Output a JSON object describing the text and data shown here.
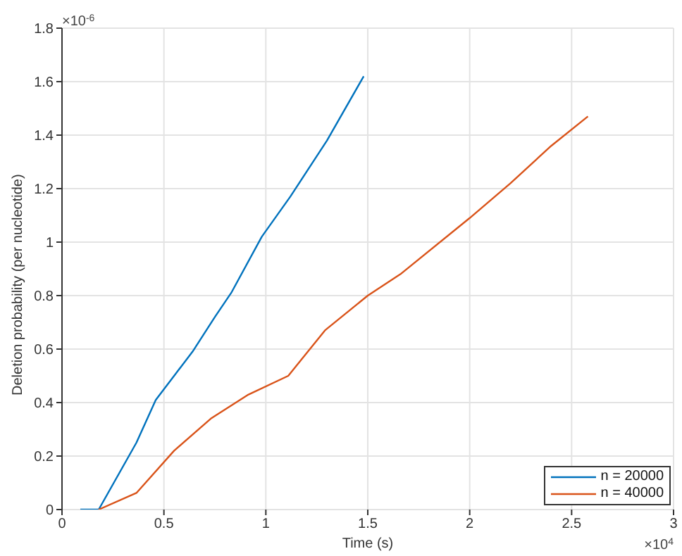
{
  "chart_data": {
    "type": "line",
    "xlabel": "Time (s)",
    "ylabel": "Deletion probability (per nucleotide)",
    "xlim": [
      0,
      3
    ],
    "xticks": [
      0,
      0.5,
      1,
      1.5,
      2,
      2.5,
      3
    ],
    "ylim": [
      0,
      1.8
    ],
    "yticks": [
      0,
      0.2,
      0.4,
      0.6,
      0.8,
      1,
      1.2,
      1.4,
      1.6,
      1.8
    ],
    "grid": true,
    "legend": "bottom right",
    "marker": "none",
    "line_style": "solid",
    "annotations": [
      "×10$^{-6}$",
      "×10$^{4}$"
    ],
    "series": [
      {
        "name": "n = 20000",
        "color": "#0072bd",
        "x": [
          0.09,
          0.18,
          0.365,
          0.46,
          0.55,
          0.64,
          0.75,
          0.83,
          0.98,
          1.12,
          1.3,
          1.48
        ],
        "values": [
          0,
          0,
          0.25,
          0.41,
          0.5,
          0.59,
          0.72,
          0.81,
          1.02,
          1.17,
          1.38,
          1.62
        ]
      },
      {
        "name": "n = 40000",
        "color": "#d95319",
        "x": [
          0.18,
          0.365,
          0.55,
          0.73,
          0.915,
          1.11,
          1.29,
          1.5,
          1.66,
          2,
          2.2,
          2.4,
          2.58
        ],
        "values": [
          0,
          0.062,
          0.22,
          0.34,
          0.43,
          0.5,
          0.67,
          0.8,
          0.88,
          1.09,
          1.22,
          1.36,
          1.47
        ]
      }
    ]
  }
}
